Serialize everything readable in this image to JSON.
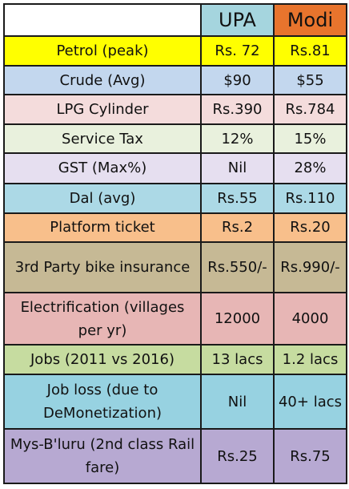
{
  "header": {
    "col1": "",
    "col2": "UPA",
    "col3": "Modi",
    "col2_bg": "#a5d5de",
    "col3_bg": "#e8742d"
  },
  "rows": [
    {
      "item": "Petrol (peak)",
      "upa": "Rs. 72",
      "modi": "Rs.81",
      "bg": "#ffff00"
    },
    {
      "item": "Crude (Avg)",
      "upa": "$90",
      "modi": "$55",
      "bg": "#c3d7ee"
    },
    {
      "item": "LPG Cylinder",
      "upa": "Rs.390",
      "modi": "Rs.784",
      "bg": "#f4dcdc"
    },
    {
      "item": "Service Tax",
      "upa": "12%",
      "modi": "15%",
      "bg": "#e9f1dd"
    },
    {
      "item": "GST (Max%)",
      "upa": "Nil",
      "modi": "28%",
      "bg": "#e6dff0"
    },
    {
      "item": "Dal (avg)",
      "upa": "Rs.55",
      "modi": "Rs.110",
      "bg": "#acd9e6"
    },
    {
      "item": "Platform ticket",
      "upa": "Rs.2",
      "modi": "Rs.20",
      "bg": "#f8bf8b"
    },
    {
      "item": "3rd Party bike insurance",
      "upa": "Rs.550/-",
      "modi": "Rs.990/-",
      "bg": "#c6b995",
      "tall": true
    },
    {
      "item": "Electrification (villages per yr)",
      "upa": "12000",
      "modi": "4000",
      "bg": "#e7b6b5",
      "tall": true
    },
    {
      "item": "Jobs (2011 vs 2016)",
      "upa": "13 lacs",
      "modi": "1.2 lacs",
      "bg": "#c6dca0"
    },
    {
      "item": "Job loss (due to DeMonetization)",
      "upa": "Nil",
      "modi": "40+ lacs",
      "bg": "#97d2e1",
      "tall": true
    },
    {
      "item": "Mys-B'luru (2nd class Rail fare)",
      "upa": "Rs.25",
      "modi": "Rs.75",
      "bg": "#b7a9d2",
      "tall": true
    }
  ]
}
